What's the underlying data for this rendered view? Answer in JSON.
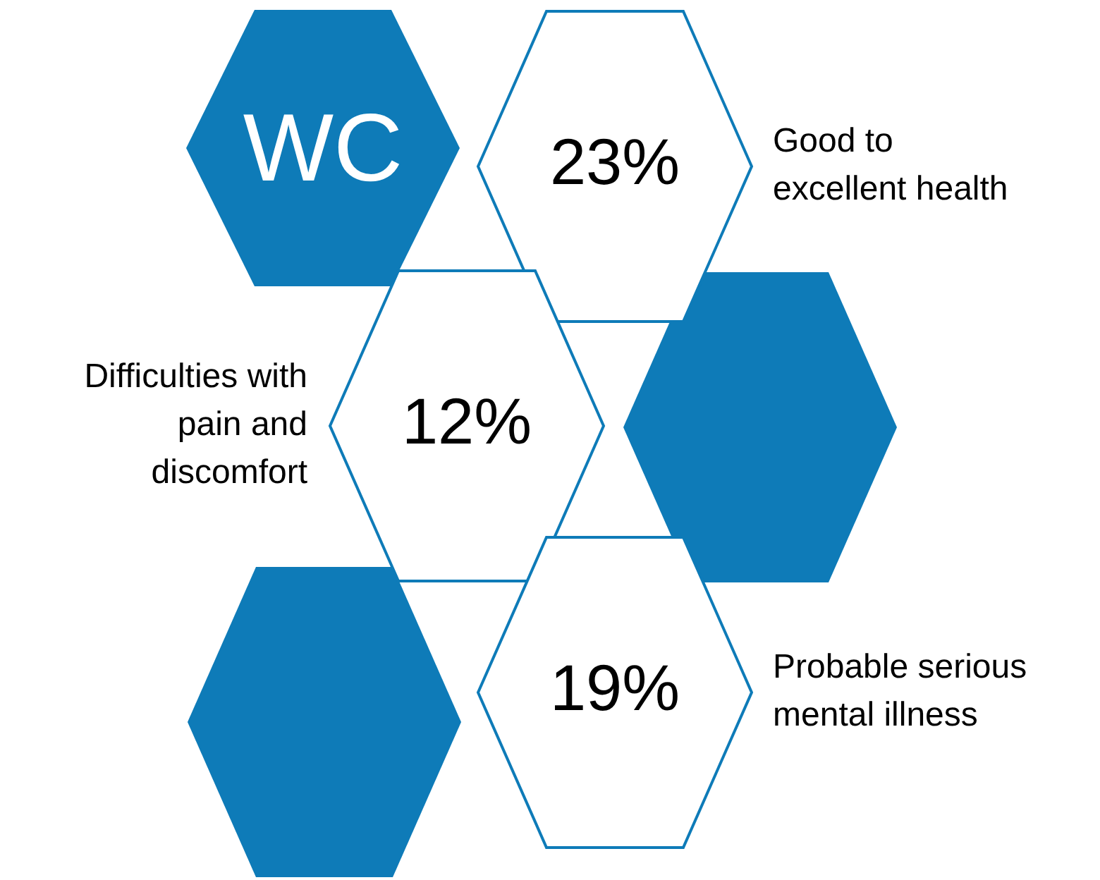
{
  "chart_data": {
    "type": "other",
    "title": "WC",
    "categories": [
      "Good to excellent health",
      "Difficulties with pain and discomfort",
      "Probable serious mental illness"
    ],
    "values": [
      23,
      12,
      19
    ],
    "value_labels": [
      "23%",
      "12%",
      "19%"
    ],
    "color": "#0e7bb8"
  }
}
